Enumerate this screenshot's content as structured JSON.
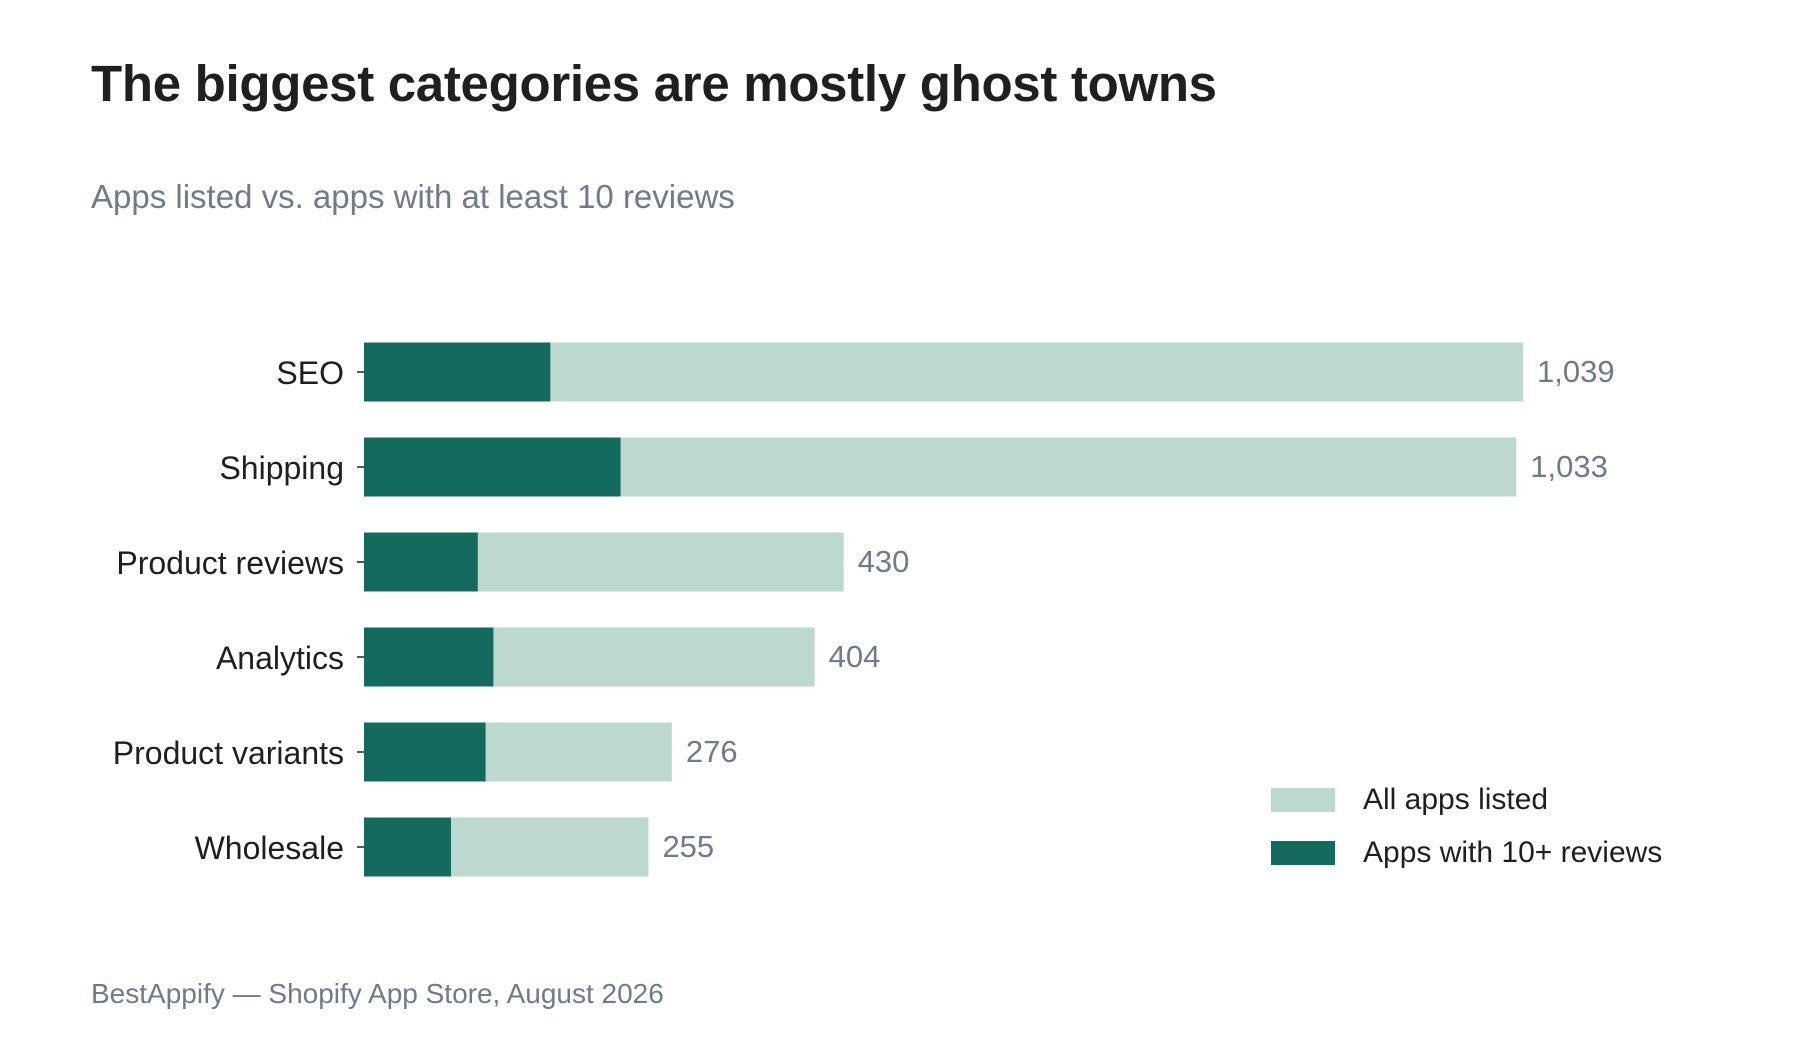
{
  "header": {
    "title": "The biggest categories are mostly ghost towns",
    "subtitle": "Apps listed vs. apps with at least 10 reviews"
  },
  "footer": {
    "source": "BestAppify — Shopify App Store, August 2026"
  },
  "colors": {
    "all_apps": "#bdd9cf",
    "reviewed_apps": "#146a5c",
    "value_text": "#707a8a"
  },
  "legend": {
    "all_label": "All apps listed",
    "reviewed_label": "Apps with 10+ reviews",
    "placement": "bottom-right"
  },
  "chart_data": {
    "type": "bar",
    "orientation": "horizontal",
    "stacking": "overlay",
    "title": "The biggest categories are mostly ghost towns",
    "subtitle": "Apps listed vs. apps with at least 10 reviews",
    "categories": [
      "SEO",
      "Shipping",
      "Product reviews",
      "Analytics",
      "Product variants",
      "Wholesale"
    ],
    "series": [
      {
        "name": "All apps listed",
        "values": [
          1039,
          1033,
          430,
          404,
          276,
          255
        ],
        "color": "#bdd9cf"
      },
      {
        "name": "Apps with 10+ reviews",
        "values": [
          167,
          230,
          102,
          116,
          109,
          78
        ],
        "color": "#146a5c"
      }
    ],
    "value_labels": [
      "1,039",
      "1,033",
      "430",
      "404",
      "276",
      "255"
    ],
    "xlim": [
      0,
      1039
    ],
    "grid": false,
    "legend_position": "bottom-right"
  }
}
